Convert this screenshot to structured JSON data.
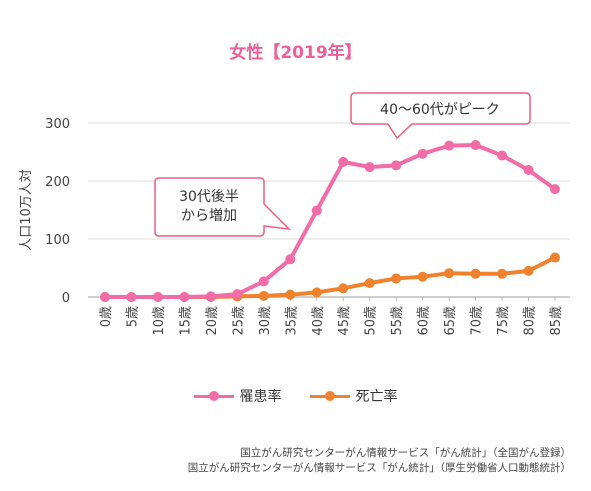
{
  "title": "女性【2019年】",
  "chart_data": {
    "type": "line",
    "ylabel": "人口10万人対",
    "ylim": [
      0,
      300
    ],
    "yticks": [
      0,
      100,
      200,
      300
    ],
    "grid": true,
    "legend_position": "bottom",
    "categories": [
      "0歳",
      "5歳",
      "10歳",
      "15歳",
      "20歳",
      "25歳",
      "30歳",
      "35歳",
      "40歳",
      "45歳",
      "50歳",
      "55歳",
      "60歳",
      "65歳",
      "70歳",
      "75歳",
      "80歳",
      "85歳"
    ],
    "series": [
      {
        "name": "罹患率",
        "color": "#f26ca7",
        "values": [
          0,
          0,
          0,
          0,
          1,
          5,
          27,
          65,
          149,
          233,
          224,
          227,
          247,
          261,
          262,
          244,
          219,
          186
        ]
      },
      {
        "name": "死亡率",
        "color": "#f0812d",
        "values": [
          0,
          0,
          0,
          0,
          0,
          1,
          2,
          4,
          8,
          15,
          24,
          32,
          35,
          41,
          40,
          40,
          45,
          68
        ]
      }
    ],
    "annotations": [
      {
        "text": "40～60代がピーク",
        "lines": [
          "40～60代がピーク"
        ]
      },
      {
        "text": "30代後半から増加",
        "lines": [
          "30代後半",
          "から増加"
        ]
      }
    ]
  },
  "sources": [
    "国立がん研究センターがん情報サービス「がん統計」（全国がん登録）",
    "国立がん研究センターがん情報サービス「がん統計」（厚生労働省人口動態統計）"
  ]
}
